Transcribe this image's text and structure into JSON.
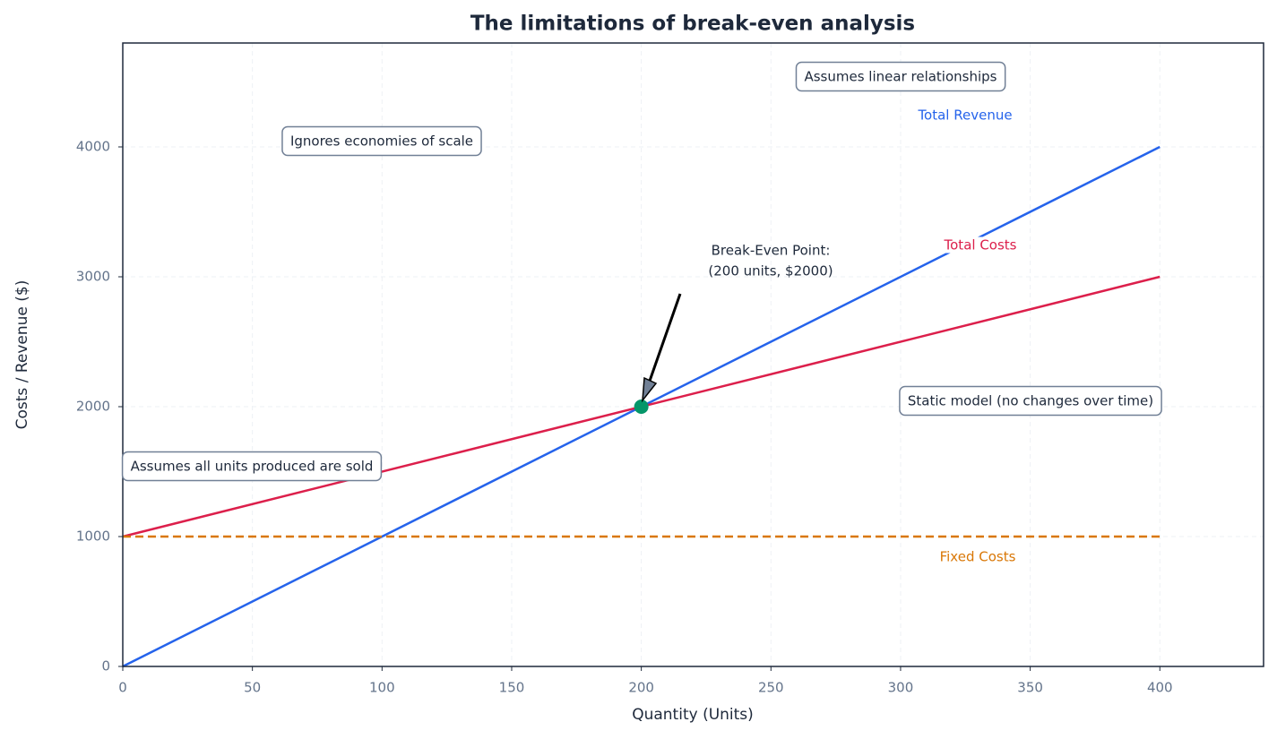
{
  "chart_data": {
    "type": "line",
    "title": "The limitations of break-even analysis",
    "x_label": "Quantity (Units)",
    "y_label": "Costs / Revenue ($)",
    "x": [
      0,
      400
    ],
    "series": [
      {
        "name": "Total Revenue",
        "color": "#2563eb",
        "values": [
          0,
          4000
        ],
        "style": "solid"
      },
      {
        "name": "Total Costs",
        "color": "#dc1f4b",
        "values": [
          1000,
          3000
        ],
        "style": "solid"
      },
      {
        "name": "Fixed Costs",
        "color": "#d97706",
        "values": [
          1000,
          1000
        ],
        "style": "dashed"
      }
    ],
    "break_even": {
      "x": 200,
      "y": 2000,
      "color": "#059669",
      "label_lines": [
        "Break-Even Point:",
        "(200 units, $2000)"
      ]
    },
    "annotations": [
      "Assumes linear relationships",
      "Ignores economies of scale",
      "Static model (no changes over time)",
      "Assumes all units produced are sold"
    ],
    "xlim": [
      0,
      440
    ],
    "ylim": [
      0,
      4800
    ],
    "xticks": [
      0,
      50,
      100,
      150,
      200,
      250,
      300,
      350,
      400
    ],
    "yticks": [
      0,
      1000,
      2000,
      3000,
      4000
    ],
    "grid": true
  }
}
